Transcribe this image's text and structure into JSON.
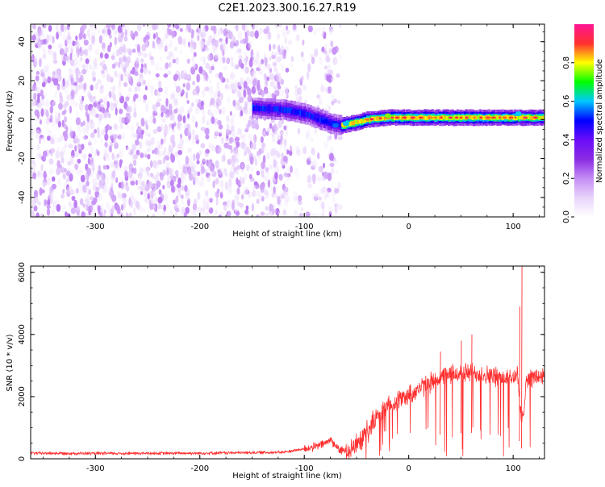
{
  "figure": {
    "title": "C2E1.2023.300.16.27.R19"
  },
  "chart_data": [
    {
      "type": "heatmap",
      "xlabel": "Height of straight line (km)",
      "ylabel": "Frequency (Hz)",
      "xlim": [
        -362,
        130
      ],
      "ylim": [
        -50,
        49
      ],
      "xticks": [
        -300,
        -200,
        -100,
        0,
        100
      ],
      "yticks": [
        -40,
        -20,
        0,
        20,
        40
      ],
      "colorbar": {
        "label": "Normalized spectral amplitude",
        "range": [
          0,
          1
        ],
        "ticks": [
          0.0,
          0.2,
          0.4,
          0.6,
          0.8
        ],
        "colors": [
          "#ffffff",
          "#e8d4fb",
          "#c48cf5",
          "#8a2be2",
          "#6a0dfa",
          "#0000ff",
          "#00c8ff",
          "#00ff00",
          "#ffff00",
          "#ff3030",
          "#ff1493"
        ]
      },
      "regions": [
        {
          "description": "scattered low-amplitude noise",
          "x_range": [
            -362,
            -65
          ],
          "y_range": [
            -50,
            49
          ],
          "amplitude": [
            0.05,
            0.2
          ]
        },
        {
          "description": "narrow high-amplitude line",
          "x_range": [
            -65,
            130
          ],
          "frequency_center": 1,
          "half_width": 3,
          "amplitude": [
            0.3,
            0.95
          ]
        }
      ],
      "trace": [
        {
          "x": -150,
          "y": 6
        },
        {
          "x": -120,
          "y": 5
        },
        {
          "x": -100,
          "y": 3
        },
        {
          "x": -85,
          "y": 0
        },
        {
          "x": -75,
          "y": -2
        },
        {
          "x": -65,
          "y": -3
        },
        {
          "x": -55,
          "y": -2
        },
        {
          "x": -40,
          "y": 0
        },
        {
          "x": -20,
          "y": 1
        },
        {
          "x": 0,
          "y": 1
        },
        {
          "x": 50,
          "y": 1
        },
        {
          "x": 100,
          "y": 1
        },
        {
          "x": 130,
          "y": 1
        }
      ]
    },
    {
      "type": "line",
      "xlabel": "Height of straight line (km)",
      "ylabel": "SNR (10 * v/v)",
      "xlim": [
        -362,
        130
      ],
      "ylim": [
        0,
        6200
      ],
      "xticks": [
        -300,
        -200,
        -100,
        0,
        100
      ],
      "yticks": [
        0,
        2000,
        4000,
        6000
      ],
      "series_color": "#ff3030",
      "series": [
        {
          "x": [
            -362,
            -300,
            -200,
            -120,
            -100,
            -90,
            -80,
            -75,
            -70,
            -65,
            -60,
            -50,
            -40,
            -30,
            -20,
            -10,
            0,
            10,
            20,
            30,
            40,
            50,
            60,
            70,
            80,
            90,
            100,
            104,
            106,
            108,
            110,
            112,
            115,
            120,
            130
          ],
          "y": [
            180,
            170,
            180,
            210,
            320,
            380,
            500,
            620,
            420,
            250,
            280,
            450,
            900,
            1350,
            1700,
            1900,
            2050,
            2250,
            2450,
            2600,
            2700,
            2750,
            2780,
            2720,
            2650,
            2600,
            2600,
            2750,
            1900,
            1100,
            1500,
            2500,
            2600,
            2620,
            2650
          ]
        }
      ],
      "spikes": [
        {
          "x": 108,
          "y": 6200
        },
        {
          "x": 106,
          "y": 4900
        },
        {
          "x": 60,
          "y": 4000
        },
        {
          "x": 50,
          "y": 3800
        },
        {
          "x": 30,
          "y": 3450
        }
      ]
    }
  ]
}
